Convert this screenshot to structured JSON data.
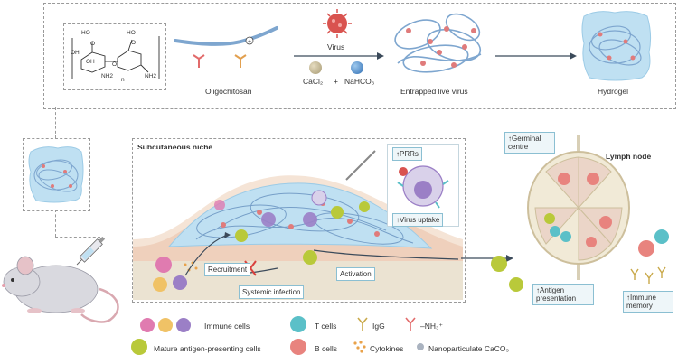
{
  "top_panel": {
    "chem_subscript_n": "n",
    "chem_labels": [
      "HO",
      "OH",
      "HO",
      "OH",
      "NH2",
      "NH2",
      "O",
      "O",
      "O"
    ],
    "oligochitosan_label": "Oligochitosan",
    "virus_label": "Virus",
    "cacl2_label": "CaCl₂",
    "plus_label": "+",
    "nahco3_label": "NaHCO₃",
    "entrapped_label": "Entrapped live virus",
    "hydrogel_label": "Hydrogel"
  },
  "niche": {
    "title": "Subcutaneous niche",
    "prrs_label": "↑PRRs",
    "virus_uptake_label": "↑Virus uptake",
    "recruitment_label": "Recruitment",
    "systemic_label": "Systemic infection",
    "activation_label": "Activation"
  },
  "lymph": {
    "title": "Lymph node",
    "germinal_label": "↑Germinal centre",
    "antigen_label": "↑Antigen presentation",
    "memory_label": "↑Immune memory"
  },
  "legend": {
    "immune_cells": "Immune cells",
    "t_cells": "T cells",
    "igg": "IgG",
    "nh3": "–NH₃⁺",
    "mature_apc": "Mature antigen-presenting cells",
    "b_cells": "B cells",
    "cytokines": "Cytokines",
    "caco3": "Nanoparticulate CaCO₃"
  },
  "colors": {
    "hydrogel_blue": "#b9dcef",
    "fiber_blue": "#7ea6cf",
    "virus_red": "#d9534f",
    "skin_tan": "#f3d3be",
    "t_cell": "#5bc0c8",
    "b_cell": "#e8837e",
    "apc_yellow": "#b9c93a",
    "immune_purple": "#9b7fc6",
    "arrow": "#3b4a5a"
  }
}
